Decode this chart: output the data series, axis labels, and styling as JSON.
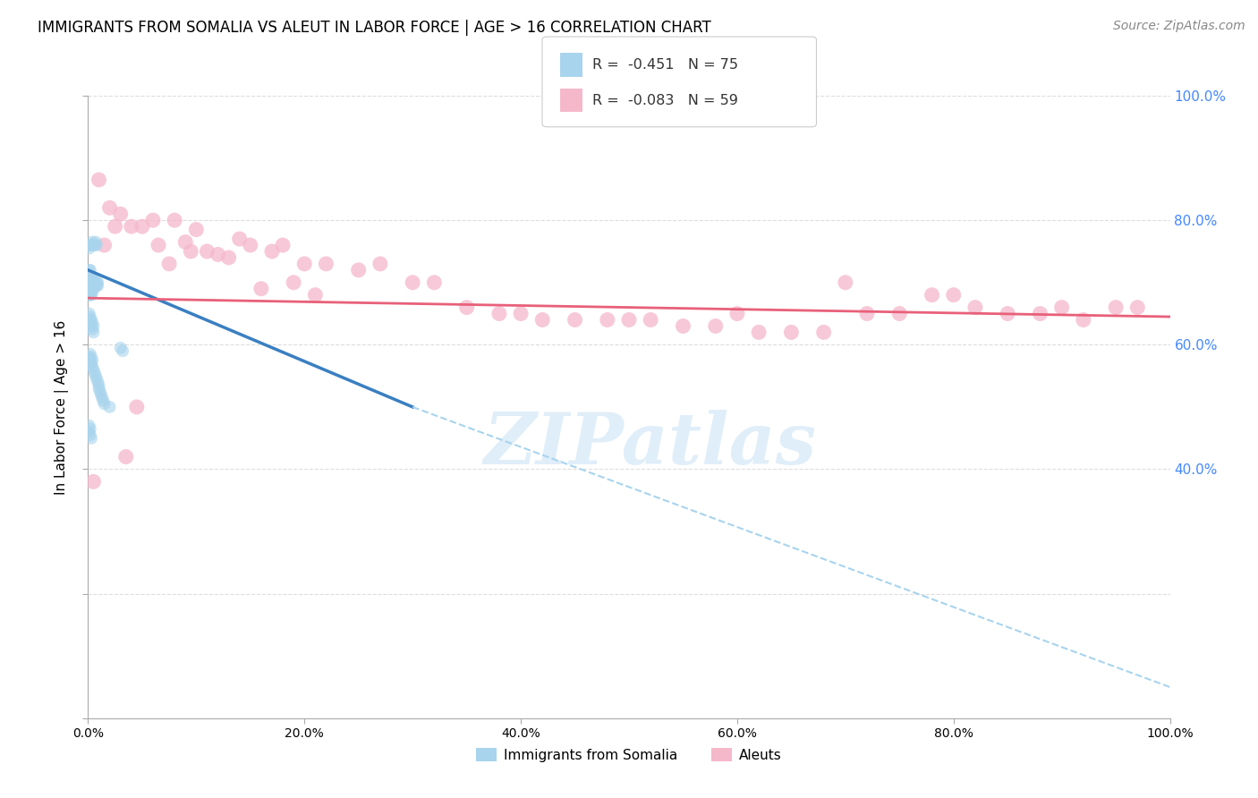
{
  "title": "IMMIGRANTS FROM SOMALIA VS ALEUT IN LABOR FORCE | AGE > 16 CORRELATION CHART",
  "source": "Source: ZipAtlas.com",
  "ylabel": "In Labor Force | Age > 16",
  "watermark": "ZIPatlas",
  "xlim": [
    0.0,
    1.0
  ],
  "ylim": [
    0.0,
    1.0
  ],
  "ytick_labels_right": [
    "40.0%",
    "60.0%",
    "80.0%",
    "100.0%"
  ],
  "ytick_vals_right": [
    0.4,
    0.6,
    0.8,
    1.0
  ],
  "xtick_labels": [
    "0.0%",
    "20.0%",
    "40.0%",
    "60.0%",
    "80.0%",
    "100.0%"
  ],
  "xtick_vals": [
    0.0,
    0.2,
    0.4,
    0.6,
    0.8,
    1.0
  ],
  "legend_label_blue": "R =  -0.451   N = 75",
  "legend_label_pink": "R =  -0.083   N = 59",
  "legend_bottom_label_blue": "Immigrants from Somalia",
  "legend_bottom_label_pink": "Aleuts",
  "blue_color": "#A8D4ED",
  "pink_color": "#F5B8CB",
  "trend_blue_color": "#3A7FC1",
  "trend_pink_color": "#E8607A",
  "trend_blue_dashed_color": "#A8D4ED",
  "background_color": "#FFFFFF",
  "grid_color": "#DDDDDD",
  "right_axis_label_color": "#4488FF",
  "title_fontsize": 12,
  "source_fontsize": 10,
  "legend_fontsize": 12,
  "axis_label_fontsize": 11,
  "somalia_x": [
    0.001,
    0.001,
    0.001,
    0.001,
    0.002,
    0.002,
    0.002,
    0.002,
    0.002,
    0.002,
    0.003,
    0.003,
    0.003,
    0.003,
    0.003,
    0.004,
    0.004,
    0.004,
    0.004,
    0.005,
    0.005,
    0.005,
    0.006,
    0.006,
    0.007,
    0.007,
    0.008,
    0.008,
    0.009,
    0.009,
    0.001,
    0.001,
    0.002,
    0.002,
    0.003,
    0.003,
    0.004,
    0.004,
    0.005,
    0.005,
    0.001,
    0.002,
    0.002,
    0.003,
    0.003,
    0.004,
    0.004,
    0.005,
    0.006,
    0.007,
    0.008,
    0.009,
    0.01,
    0.01,
    0.011,
    0.012,
    0.013,
    0.014,
    0.015,
    0.02,
    0.001,
    0.002,
    0.003,
    0.004,
    0.005,
    0.006,
    0.007,
    0.008,
    0.03,
    0.032,
    0.001,
    0.001,
    0.002,
    0.002,
    0.003
  ],
  "somalia_y": [
    0.7,
    0.71,
    0.68,
    0.72,
    0.7,
    0.69,
    0.71,
    0.68,
    0.72,
    0.695,
    0.68,
    0.7,
    0.69,
    0.71,
    0.695,
    0.685,
    0.7,
    0.695,
    0.705,
    0.69,
    0.7,
    0.695,
    0.695,
    0.7,
    0.7,
    0.695,
    0.695,
    0.7,
    0.695,
    0.7,
    0.64,
    0.65,
    0.635,
    0.645,
    0.63,
    0.64,
    0.625,
    0.635,
    0.62,
    0.63,
    0.58,
    0.575,
    0.585,
    0.57,
    0.58,
    0.565,
    0.575,
    0.56,
    0.555,
    0.55,
    0.545,
    0.54,
    0.535,
    0.53,
    0.525,
    0.52,
    0.515,
    0.51,
    0.505,
    0.5,
    0.755,
    0.76,
    0.76,
    0.765,
    0.76,
    0.76,
    0.765,
    0.76,
    0.595,
    0.59,
    0.47,
    0.46,
    0.465,
    0.455,
    0.45
  ],
  "aleut_x": [
    0.005,
    0.01,
    0.02,
    0.03,
    0.04,
    0.05,
    0.06,
    0.08,
    0.09,
    0.1,
    0.11,
    0.12,
    0.14,
    0.15,
    0.17,
    0.18,
    0.2,
    0.22,
    0.25,
    0.27,
    0.3,
    0.32,
    0.35,
    0.38,
    0.4,
    0.42,
    0.45,
    0.48,
    0.5,
    0.52,
    0.55,
    0.58,
    0.6,
    0.62,
    0.65,
    0.68,
    0.7,
    0.72,
    0.75,
    0.78,
    0.8,
    0.82,
    0.85,
    0.88,
    0.9,
    0.92,
    0.95,
    0.97,
    0.015,
    0.025,
    0.035,
    0.045,
    0.065,
    0.075,
    0.095,
    0.13,
    0.16,
    0.19,
    0.21
  ],
  "aleut_y": [
    0.38,
    0.865,
    0.82,
    0.81,
    0.79,
    0.79,
    0.8,
    0.8,
    0.765,
    0.785,
    0.75,
    0.745,
    0.77,
    0.76,
    0.75,
    0.76,
    0.73,
    0.73,
    0.72,
    0.73,
    0.7,
    0.7,
    0.66,
    0.65,
    0.65,
    0.64,
    0.64,
    0.64,
    0.64,
    0.64,
    0.63,
    0.63,
    0.65,
    0.62,
    0.62,
    0.62,
    0.7,
    0.65,
    0.65,
    0.68,
    0.68,
    0.66,
    0.65,
    0.65,
    0.66,
    0.64,
    0.66,
    0.66,
    0.76,
    0.79,
    0.42,
    0.5,
    0.76,
    0.73,
    0.75,
    0.74,
    0.69,
    0.7,
    0.68
  ],
  "trend_blue_x0": 0.0,
  "trend_blue_y0": 0.72,
  "trend_blue_x1": 0.3,
  "trend_blue_y1": 0.5,
  "trend_blue_dash_x1": 1.0,
  "trend_blue_dash_y1": 0.05,
  "trend_pink_x0": 0.0,
  "trend_pink_y0": 0.675,
  "trend_pink_x1": 1.0,
  "trend_pink_y1": 0.645
}
